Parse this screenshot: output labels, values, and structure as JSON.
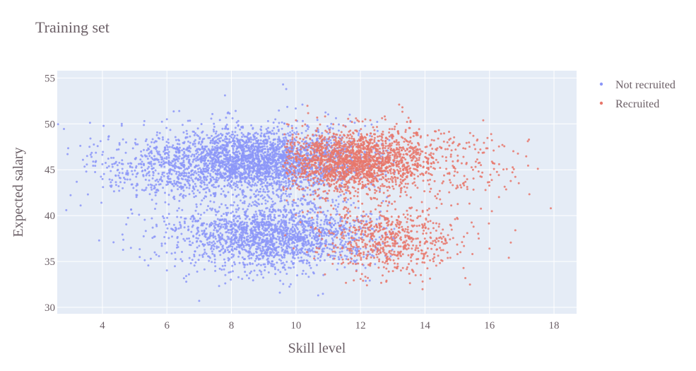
{
  "chart_data": {
    "type": "scatter",
    "title": "Training set",
    "xlabel": "Skill level",
    "ylabel": "Expected salary",
    "xlim": [
      2.6,
      18.7
    ],
    "ylim": [
      29.3,
      55.8
    ],
    "xticks": [
      4,
      6,
      8,
      10,
      12,
      14,
      16,
      18
    ],
    "yticks": [
      30,
      35,
      40,
      45,
      50,
      55
    ],
    "grid": true,
    "legend_position": "top-right",
    "plot_background": "#e5ecf6",
    "series": [
      {
        "name": "Not recruited",
        "color": "#8c96f8",
        "approx_point_count": 5000,
        "clusters": [
          {
            "x_mean": 8.8,
            "x_sd": 1.6,
            "y_mean": 46.0,
            "y_sd": 1.8,
            "share": 0.55
          },
          {
            "x_mean": 9.3,
            "x_sd": 1.5,
            "y_mean": 37.8,
            "y_sd": 1.8,
            "share": 0.38
          },
          {
            "x_mean": 5.8,
            "x_sd": 1.2,
            "y_mean": 45.0,
            "y_sd": 2.2,
            "share": 0.07
          }
        ],
        "x": [
          3.5,
          3.6,
          3.9,
          4.0,
          4.6,
          4.6,
          6.6,
          7.0,
          7.8,
          9.6,
          9.7,
          9.5,
          5.3,
          6.0,
          5.5,
          10.2
        ],
        "y": [
          44.8,
          47.5,
          37.3,
          45.6,
          49.8,
          50.0,
          32.8,
          30.7,
          53.1,
          54.3,
          53.8,
          31.6,
          50.3,
          50.5,
          35.3,
          52.1
        ]
      },
      {
        "name": "Recruited",
        "color": "#e8776b",
        "approx_point_count": 2600,
        "clusters": [
          {
            "x_mean": 12.0,
            "x_sd": 1.2,
            "y_mean": 46.0,
            "y_sd": 1.7,
            "share": 0.7
          },
          {
            "x_mean": 12.9,
            "x_sd": 1.1,
            "y_mean": 37.5,
            "y_sd": 1.9,
            "share": 0.25
          },
          {
            "x_mean": 15.3,
            "x_sd": 1.0,
            "y_mean": 45.5,
            "y_sd": 2.0,
            "share": 0.05
          }
        ],
        "x": [
          17.9,
          17.5,
          16.8,
          16.6,
          16.3,
          15.4,
          15.5,
          16.0,
          13.2,
          13.3,
          12.2,
          10.9,
          12.8,
          16.4
        ],
        "y": [
          40.8,
          45.1,
          38.4,
          35.4,
          45.6,
          49.0,
          48.7,
          36.4,
          52.1,
          51.8,
          32.4,
          33.6,
          32.8,
          47.7
        ]
      }
    ]
  }
}
